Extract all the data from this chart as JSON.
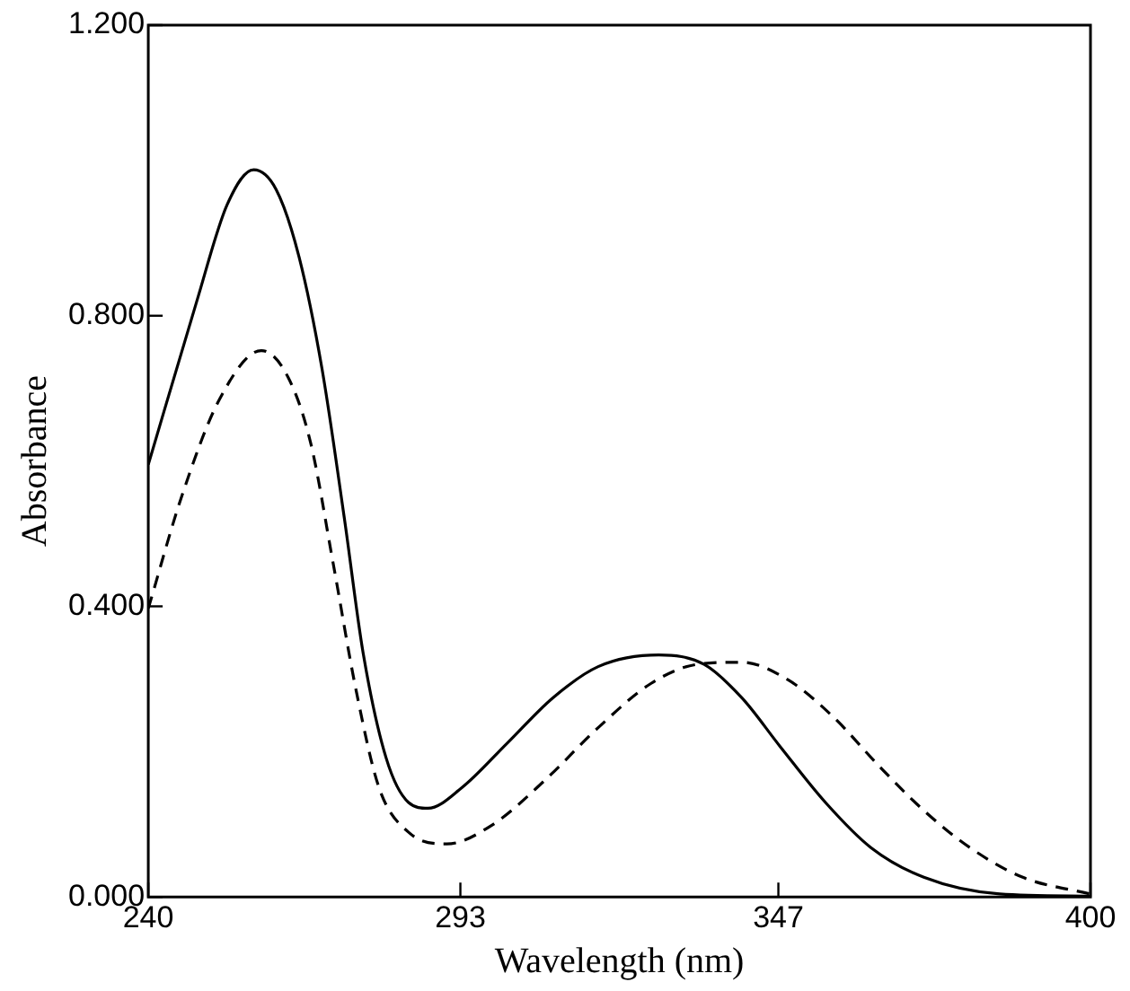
{
  "chart_data": {
    "type": "line",
    "xlabel": "Wavelength (nm)",
    "ylabel": "Absorbance",
    "xlim": [
      240,
      400
    ],
    "ylim": [
      0,
      1.2
    ],
    "xticks": [
      240,
      293,
      347,
      400
    ],
    "yticks": [
      {
        "value": 0,
        "label": "0.000"
      },
      {
        "value": 0.4,
        "label": "0.400"
      },
      {
        "value": 0.8,
        "label": "0.800"
      },
      {
        "value": 1.2,
        "label": "1.200"
      }
    ],
    "grid": false,
    "legend": false,
    "marker": "none",
    "series": [
      {
        "color": "#000000",
        "line_style": "solid",
        "x": [
          240,
          248.2,
          253.4,
          257.9,
          261.7,
          265.6,
          269.5,
          273.3,
          276.5,
          280.4,
          284.2,
          287.5,
          293.2,
          301,
          308.7,
          316.4,
          326.7,
          334.4,
          340.8,
          347.3,
          355,
          362.7,
          371.7,
          384.6,
          400
        ],
        "values": [
          0.595,
          0.819,
          0.953,
          1.001,
          0.974,
          0.881,
          0.727,
          0.521,
          0.335,
          0.191,
          0.13,
          0.122,
          0.15,
          0.212,
          0.274,
          0.317,
          0.333,
          0.32,
          0.274,
          0.207,
          0.13,
          0.068,
          0.027,
          0.004,
          0.001
        ]
      },
      {
        "color": "#000000",
        "line_style": "dashed",
        "x": [
          240,
          245.7,
          252.1,
          259.2,
          263.7,
          267.6,
          271.4,
          275.3,
          279.2,
          284.2,
          290.7,
          298.4,
          307.4,
          316.4,
          325.4,
          333.1,
          340.8,
          348.6,
          356.3,
          364,
          371.7,
          379.5,
          388.5,
          400
        ],
        "values": [
          0.397,
          0.552,
          0.685,
          0.752,
          0.716,
          0.624,
          0.459,
          0.284,
          0.15,
          0.089,
          0.073,
          0.099,
          0.161,
          0.233,
          0.294,
          0.32,
          0.323,
          0.299,
          0.248,
          0.181,
          0.119,
          0.068,
          0.027,
          0.004
        ]
      }
    ]
  }
}
